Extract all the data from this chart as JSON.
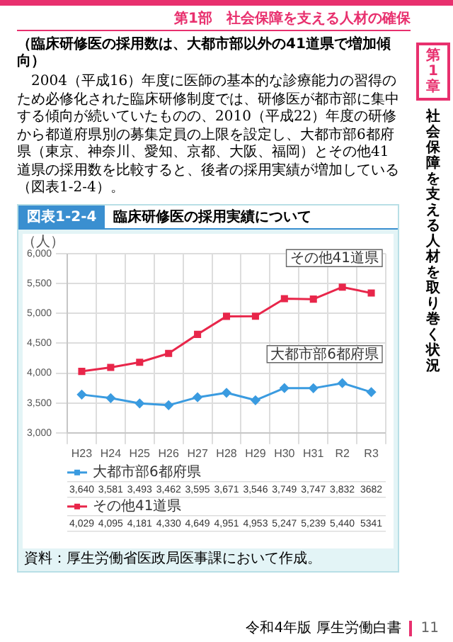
{
  "chart_data": {
    "type": "line",
    "title": "臨床研修医の採用実績について",
    "ylabel": "（人）",
    "categories": [
      "H23",
      "H24",
      "H25",
      "H26",
      "H27",
      "H28",
      "H29",
      "H30",
      "H31",
      "R2",
      "R3"
    ],
    "series": [
      {
        "name": "大都市部6都府県",
        "color": "#3a9be0",
        "marker": "diamond",
        "values": [
          3640,
          3581,
          3493,
          3462,
          3595,
          3671,
          3546,
          3749,
          3747,
          3832,
          3682
        ],
        "value_labels": [
          "3,640",
          "3,581",
          "3,493",
          "3,462",
          "3,595",
          "3,671",
          "3,546",
          "3,749",
          "3,747",
          "3,832",
          "3682"
        ]
      },
      {
        "name": "その他41道県",
        "color": "#e8264a",
        "marker": "square",
        "values": [
          4029,
          4095,
          4181,
          4330,
          4649,
          4951,
          4953,
          5247,
          5239,
          5440,
          5341
        ],
        "value_labels": [
          "4,029",
          "4,095",
          "4,181",
          "4,330",
          "4,649",
          "4,951",
          "4,953",
          "5,247",
          "5,239",
          "5,440",
          "5341"
        ]
      }
    ],
    "ylim": [
      3000,
      6000
    ],
    "yticks": [
      {
        "value": 3000,
        "label": "3,000"
      },
      {
        "value": 3500,
        "label": "3,500"
      },
      {
        "value": 4000,
        "label": "4,000"
      },
      {
        "value": 4500,
        "label": "4,500"
      },
      {
        "value": 5000,
        "label": "5,000"
      },
      {
        "value": 5500,
        "label": "5,500"
      },
      {
        "value": 6000,
        "label": "6,000"
      }
    ],
    "grid": true,
    "legend": "bottom",
    "line_style": "solid",
    "annotations": [
      "図表1-2-4",
      "資料：厚生労働省医政局医事課において作成。",
      "第1部　社会保障を支える人材の確保",
      "（臨床研修医の採用数は、大都市部以外の41道県で増加傾向）",
      "2004（平成16）年度に医師の基本的な診療能力の習得のため必修化された臨床研修制度では、研修医が都市部に集中する傾向が続いていたものの、2010（平成22）年度の研修から都道府県別の募集定員の上限を設定し、大都市部6都府県（東京、神奈川、愛知、京都、大阪、福岡）とその他41道県の採用数を比較すると、後者の採用実績が増加している（図表1-2-4）。",
      "第1章",
      "社会保障を支える人材を取り巻く状況",
      "令和4年版 厚生労働白書",
      "11"
    ]
  }
}
